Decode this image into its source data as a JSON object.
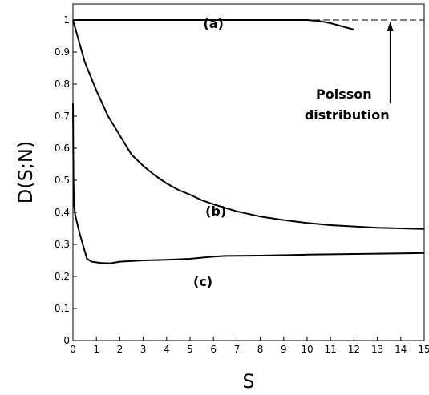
{
  "chart_data": {
    "type": "line",
    "xlabel": "S",
    "ylabel": "D(S;N)",
    "xlim": [
      0,
      15
    ],
    "ylim": [
      0,
      1.05
    ],
    "xticks": [
      "0",
      "1",
      "2",
      "3",
      "4",
      "5",
      "6",
      "7",
      "8",
      "9",
      "10",
      "11",
      "12",
      "13",
      "14",
      "15"
    ],
    "yticks": [
      "0",
      "0.1",
      "0.2",
      "0.3",
      "0.4",
      "0.5",
      "0.6",
      "0.7",
      "0.8",
      "0.9",
      "1"
    ],
    "grid": false,
    "reference_line": {
      "y": 1.0,
      "style": "dashed"
    },
    "series": [
      {
        "label": "(a)",
        "x": [
          0,
          2,
          4,
          6,
          8,
          10,
          10.5,
          11,
          11.5,
          12
        ],
        "y": [
          1.0,
          1.0,
          1.0,
          1.0,
          1.0,
          1.0,
          0.997,
          0.99,
          0.98,
          0.97
        ]
      },
      {
        "label": "(b)",
        "x": [
          0,
          0.5,
          1,
          1.5,
          2,
          2.5,
          3,
          3.5,
          4,
          4.5,
          5,
          5.5,
          6,
          7,
          8,
          9,
          10,
          11,
          12,
          13,
          14,
          15
        ],
        "y": [
          1.0,
          0.87,
          0.78,
          0.7,
          0.64,
          0.58,
          0.545,
          0.515,
          0.49,
          0.47,
          0.455,
          0.438,
          0.425,
          0.403,
          0.387,
          0.376,
          0.367,
          0.36,
          0.356,
          0.352,
          0.35,
          0.348
        ]
      },
      {
        "label": "(c)",
        "x": [
          0,
          0.02,
          0.05,
          0.1,
          0.3,
          0.6,
          0.8,
          1.2,
          1.6,
          2,
          3,
          4,
          5,
          6,
          6.5,
          8,
          10,
          12,
          14,
          15
        ],
        "y": [
          0.74,
          0.5,
          0.42,
          0.39,
          0.33,
          0.255,
          0.246,
          0.242,
          0.241,
          0.246,
          0.25,
          0.252,
          0.255,
          0.262,
          0.264,
          0.265,
          0.268,
          0.27,
          0.272,
          0.273
        ]
      }
    ],
    "annotation": {
      "lines": [
        "Poisson",
        "distribution"
      ],
      "arrow_from": [
        13.55,
        0.74
      ],
      "arrow_to": [
        13.55,
        0.995
      ]
    },
    "label_positions": [
      {
        "label": "(a)",
        "x": 6.0,
        "y": 0.975
      },
      {
        "label": "(b)",
        "x": 6.1,
        "y": 0.39
      },
      {
        "label": "(c)",
        "x": 5.55,
        "y": 0.17
      }
    ]
  }
}
